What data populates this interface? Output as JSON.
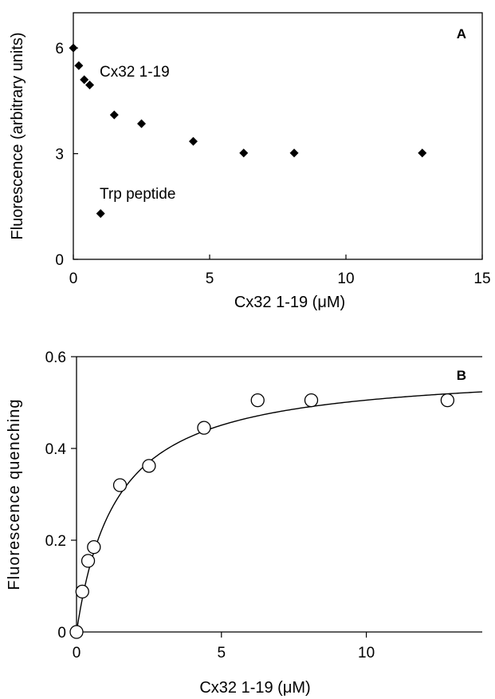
{
  "chart_data": [
    {
      "type": "scatter",
      "panel_label": "A",
      "xlabel": "Cx32 1-19 (μM)",
      "ylabel": "Fluorescence (arbitrary units)",
      "xlim": [
        0,
        15
      ],
      "ylim": [
        0,
        7
      ],
      "xticks": [
        0,
        5,
        10,
        15
      ],
      "yticks": [
        0,
        3,
        6
      ],
      "grid": false,
      "marker": "filled-diamond",
      "series": [
        {
          "name": "Cx32 1-19",
          "x": [
            0,
            0.2,
            0.4,
            0.6,
            1.5,
            2.5,
            4.4,
            6.25,
            8.1,
            12.8
          ],
          "y": [
            6.0,
            5.5,
            5.1,
            4.95,
            4.1,
            3.85,
            3.35,
            3.02,
            3.02,
            3.02
          ]
        },
        {
          "name": "Trp peptide",
          "x": [
            1.0
          ],
          "y": [
            1.3
          ]
        }
      ],
      "annotations": [
        "Cx32 1-19",
        "Trp peptide"
      ]
    },
    {
      "type": "scatter",
      "panel_label": "B",
      "xlabel": "Cx32 1-19 (μM)",
      "ylabel": "Fluorescence quenching",
      "xlim": [
        0,
        14
      ],
      "ylim": [
        0,
        0.6
      ],
      "xticks": [
        0,
        5,
        10
      ],
      "yticks": [
        0,
        0.2,
        0.4,
        0.6
      ],
      "grid": false,
      "marker": "open-circle",
      "series": [
        {
          "x": [
            0,
            0.2,
            0.4,
            0.6,
            1.5,
            2.5,
            4.4,
            6.25,
            8.1,
            12.8
          ],
          "y": [
            0.0,
            0.088,
            0.155,
            0.185,
            0.32,
            0.362,
            0.445,
            0.505,
            0.505,
            0.505
          ]
        }
      ],
      "fit_curve": {
        "type": "hyperbolic",
        "bmax": 0.575,
        "kd": 1.38
      }
    }
  ]
}
